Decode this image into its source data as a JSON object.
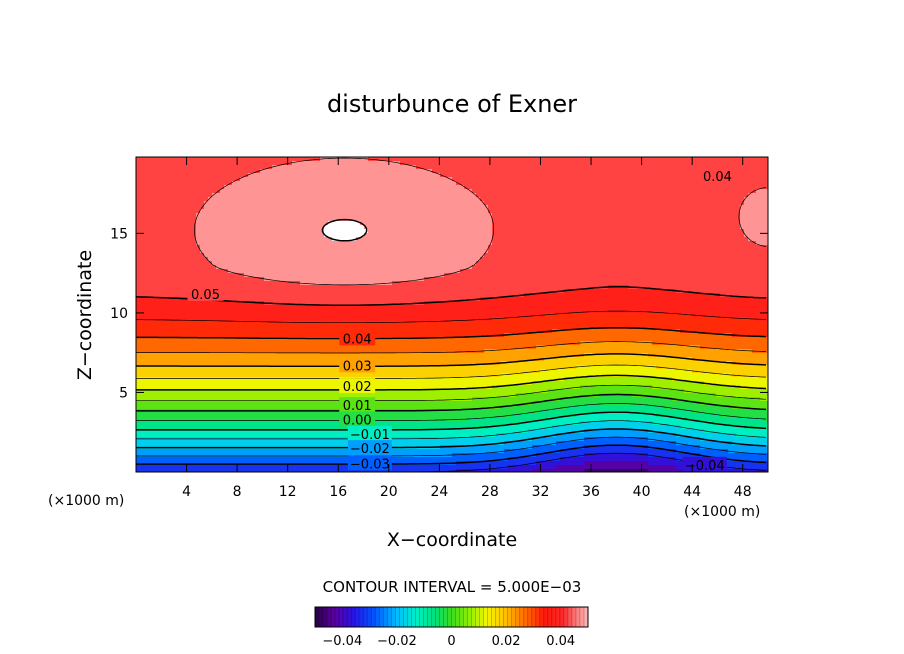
{
  "chart_data": {
    "type": "heatmap",
    "title": "disturbunce of Exner",
    "xlabel": "X−coordinate",
    "ylabel": "Z−coordinate",
    "x_unit": "(×1000 m)",
    "y_unit": "(×1000 m)",
    "xlim": [
      0,
      50
    ],
    "ylim": [
      0,
      19.8
    ],
    "x_ticks": [
      4,
      8,
      12,
      16,
      20,
      24,
      28,
      32,
      36,
      40,
      44,
      48
    ],
    "y_ticks": [
      5,
      10,
      15
    ],
    "x_tick_labels": [
      "4",
      "8",
      "12",
      "16",
      "20",
      "24",
      "28",
      "32",
      "36",
      "40",
      "44",
      "48"
    ],
    "y_tick_labels": [
      "5",
      "10",
      "15"
    ],
    "contour_interval_text": "CONTOUR INTERVAL = 5.000E−03",
    "contour_interval": 0.005,
    "contour_levels": [
      -0.035,
      -0.03,
      -0.025,
      -0.02,
      -0.015,
      -0.01,
      -0.005,
      0.0,
      0.005,
      0.01,
      0.015,
      0.02,
      0.025,
      0.03,
      0.035,
      0.04,
      0.045
    ],
    "contour_labels": [
      {
        "text": "0.04",
        "x": 46.0,
        "y": 18.6
      },
      {
        "text": "0.05",
        "x": 5.5,
        "y": 11.2
      },
      {
        "text": "0.04",
        "x": 17.5,
        "y": 8.4
      },
      {
        "text": "0.03",
        "x": 17.5,
        "y": 6.7
      },
      {
        "text": "0.02",
        "x": 17.5,
        "y": 5.4
      },
      {
        "text": "0.01",
        "x": 17.5,
        "y": 4.2
      },
      {
        "text": "0.00",
        "x": 17.5,
        "y": 3.3
      },
      {
        "text": "−0.01",
        "x": 18.5,
        "y": 2.4
      },
      {
        "text": "−0.02",
        "x": 18.5,
        "y": 1.5
      },
      {
        "text": "−0.03",
        "x": 18.5,
        "y": 0.55
      },
      {
        "text": "−0.04",
        "x": 45.0,
        "y": 0.45
      }
    ],
    "colorbar": {
      "min": -0.05,
      "max": 0.05,
      "ticks": [
        -0.04,
        -0.02,
        0,
        0.02,
        0.04
      ],
      "tick_labels": [
        "−0.04",
        "−0.02",
        "0",
        "0.02",
        "0.04"
      ],
      "colormap": "rainbow (purple-blue-cyan-green-yellow-red-pink)",
      "above_max_color": "#ffffff"
    },
    "field_description": {
      "min_value": -0.045,
      "min_location": [
        38,
        0
      ],
      "max_region_value": 0.05,
      "max_region_center": [
        16,
        15.5
      ],
      "saddle_point": [
        38,
        15.2
      ]
    }
  }
}
